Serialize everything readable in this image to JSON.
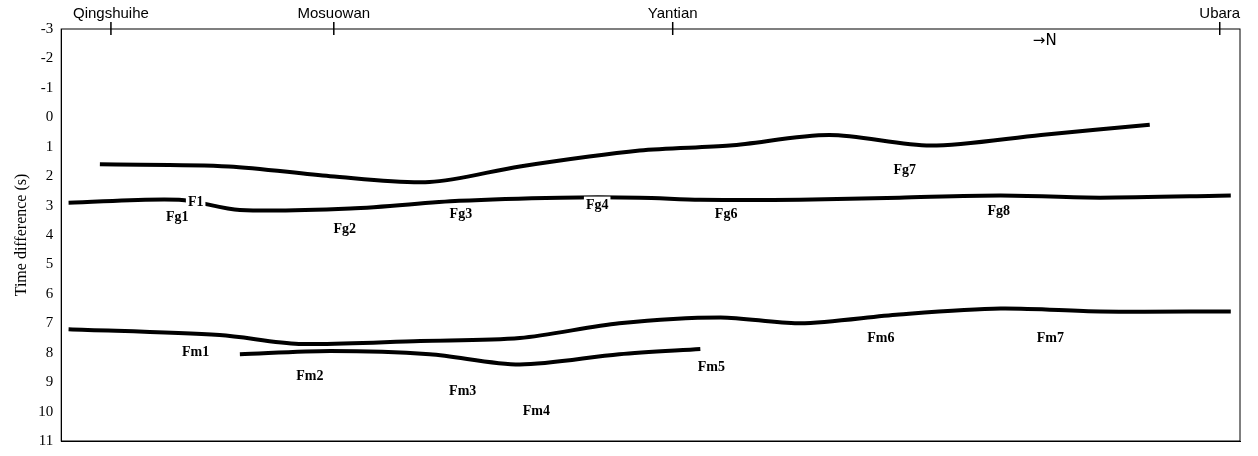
{
  "chart_data": {
    "type": "line",
    "y_label": "Time difference (s)",
    "xlim": [
      137,
      201
    ],
    "ylim": [
      -3,
      11
    ],
    "yticks": [
      -3,
      -2,
      -1,
      0,
      1,
      2,
      3,
      4,
      5,
      6,
      7,
      8,
      9,
      10,
      11
    ],
    "grid": false,
    "tick_labels": "y",
    "color": "#000000",
    "line_style": "solid",
    "marker": "none",
    "series": [
      {
        "x": [
          139.1,
          146.1,
          151.6,
          157.0,
          161.9,
          168.4,
          173.3,
          178.7,
          184.2,
          190.2,
          196.1
        ],
        "values": [
          1.6,
          1.67,
          2.0,
          2.2,
          1.67,
          1.13,
          0.96,
          0.6,
          0.96,
          0.6,
          0.25
        ]
      },
      {
        "x": [
          137.4,
          143.4,
          146.7,
          152.7,
          158.6,
          164.1,
          168.4,
          171.7,
          177.1,
          182.5,
          188.0,
          193.4,
          200.5
        ],
        "values": [
          2.9,
          2.8,
          3.15,
          3.1,
          2.84,
          2.73,
          2.73,
          2.8,
          2.8,
          2.73,
          2.66,
          2.73,
          2.66
        ]
      },
      {
        "x": [
          137.4,
          145.6,
          149.9,
          156.5,
          161.9,
          167.3,
          172.8,
          177.1,
          182.5,
          188.0,
          193.4,
          200.5
        ],
        "values": [
          7.2,
          7.4,
          7.7,
          7.6,
          7.5,
          7.0,
          6.8,
          7.0,
          6.7,
          6.5,
          6.6,
          6.6
        ]
      },
      {
        "x": [
          146.7,
          151.6,
          157.0,
          161.9,
          167.3,
          171.7
        ],
        "values": [
          8.05,
          7.94,
          8.05,
          8.4,
          8.05,
          7.87
        ]
      }
    ],
    "places": [
      {
        "label": "Qingshuihe",
        "x": 139.7
      },
      {
        "label": "Mosuowan",
        "x": 151.8
      },
      {
        "label": "Yantian",
        "x": 170.2
      },
      {
        "label": "Ubara",
        "x": 199.9
      }
    ],
    "direction": {
      "label": "→N",
      "x": 190.4,
      "y": -2.6
    },
    "annotations": [
      {
        "text": "F1",
        "x": 144.3,
        "y": 2.9
      },
      {
        "text": "Fg1",
        "x": 143.3,
        "y": 3.4
      },
      {
        "text": "Fg2",
        "x": 152.4,
        "y": 3.8
      },
      {
        "text": "Fg3",
        "x": 158.7,
        "y": 3.3
      },
      {
        "text": "Fg4",
        "x": 166.1,
        "y": 3.0
      },
      {
        "text": "Fg6",
        "x": 173.1,
        "y": 3.3
      },
      {
        "text": "Fg7",
        "x": 182.8,
        "y": 1.8
      },
      {
        "text": "Fg8",
        "x": 187.9,
        "y": 3.2
      },
      {
        "text": "Fm1",
        "x": 144.3,
        "y": 8.0
      },
      {
        "text": "Fm2",
        "x": 150.5,
        "y": 8.8
      },
      {
        "text": "Fm3",
        "x": 158.8,
        "y": 9.3
      },
      {
        "text": "Fm4",
        "x": 162.8,
        "y": 10.0
      },
      {
        "text": "Fm5",
        "x": 172.3,
        "y": 8.5
      },
      {
        "text": "Fm6",
        "x": 181.5,
        "y": 7.5
      },
      {
        "text": "Fm7",
        "x": 190.7,
        "y": 7.5
      }
    ]
  }
}
